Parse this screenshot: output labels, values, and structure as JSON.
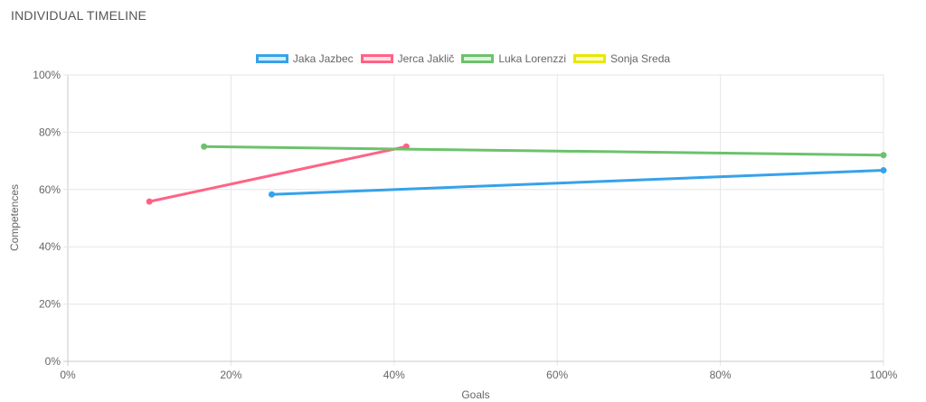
{
  "page": {
    "title": "INDIVIDUAL TIMELINE"
  },
  "chart_data": {
    "type": "line",
    "title": "",
    "xlabel": "Goals",
    "ylabel": "Competences",
    "xlim": [
      0,
      100
    ],
    "ylim": [
      0,
      100
    ],
    "x_ticks": [
      "0%",
      "20%",
      "40%",
      "60%",
      "80%",
      "100%"
    ],
    "y_ticks": [
      "0%",
      "20%",
      "40%",
      "60%",
      "80%",
      "100%"
    ],
    "grid": true,
    "legend_position": "top",
    "series": [
      {
        "name": "Jaka Jazbec",
        "color": "#36a2eb",
        "fill": "#d7ecfb",
        "points": [
          {
            "x": 25,
            "y": 58.3
          },
          {
            "x": 100,
            "y": 66.7
          }
        ]
      },
      {
        "name": "Jerca Jaklič",
        "color": "#ff6384",
        "fill": "#ffe0e6",
        "points": [
          {
            "x": 10,
            "y": 55.8
          },
          {
            "x": 41.5,
            "y": 75
          }
        ]
      },
      {
        "name": "Luka Lorenzzi",
        "color": "#6cc26c",
        "fill": "#dff1df",
        "points": [
          {
            "x": 16.7,
            "y": 75
          },
          {
            "x": 100,
            "y": 72
          }
        ]
      },
      {
        "name": "Sonja Sreda",
        "color": "#e8e800",
        "fill": "#fbfbd0",
        "points": []
      }
    ]
  }
}
